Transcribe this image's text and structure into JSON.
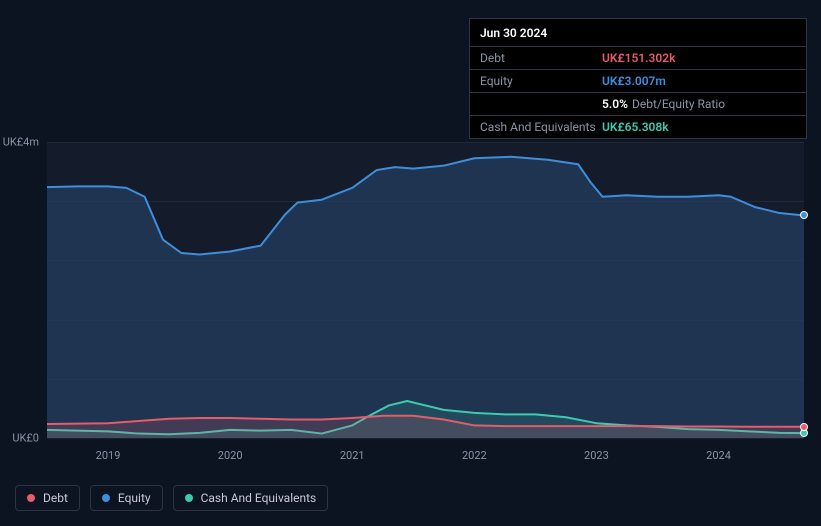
{
  "info_panel": {
    "title": "Jun 30 2024",
    "rows": [
      {
        "label": "Debt",
        "value": "UK£151.302k",
        "value_color": "#e35d6a",
        "extra": ""
      },
      {
        "label": "Equity",
        "value": "UK£3.007m",
        "value_color": "#3f8edc",
        "extra": ""
      },
      {
        "label": "",
        "value": "5.0%",
        "value_color": "#ffffff",
        "extra": "Debt/Equity Ratio"
      },
      {
        "label": "Cash And Equivalents",
        "value": "UK£65.308k",
        "value_color": "#3fcab0",
        "extra": ""
      }
    ]
  },
  "chart": {
    "background_color": "#0d1421",
    "plot_background": "#141c2c",
    "grid_color": "rgba(120,135,160,0.12)",
    "y_axis": {
      "max_value": 4000000,
      "min_value": 0,
      "labels": [
        {
          "text": "UK£4m",
          "value": 4000000
        },
        {
          "text": "UK£0",
          "value": 0
        }
      ]
    },
    "x_axis": {
      "min": 2018.5,
      "max": 2024.7,
      "ticks": [
        {
          "label": "2019",
          "value": 2019
        },
        {
          "label": "2020",
          "value": 2020
        },
        {
          "label": "2021",
          "value": 2021
        },
        {
          "label": "2022",
          "value": 2022
        },
        {
          "label": "2023",
          "value": 2023
        },
        {
          "label": "2024",
          "value": 2024
        }
      ]
    },
    "grid_h_count": 5,
    "series": [
      {
        "name": "Equity",
        "color": "#3f8edc",
        "fill": "rgba(36,68,106,0.60)",
        "line_width": 2,
        "points": [
          [
            2018.5,
            3390000
          ],
          [
            2018.75,
            3400000
          ],
          [
            2019.0,
            3400000
          ],
          [
            2019.15,
            3380000
          ],
          [
            2019.3,
            3260000
          ],
          [
            2019.45,
            2680000
          ],
          [
            2019.6,
            2500000
          ],
          [
            2019.75,
            2480000
          ],
          [
            2020.0,
            2520000
          ],
          [
            2020.25,
            2600000
          ],
          [
            2020.45,
            3020000
          ],
          [
            2020.55,
            3180000
          ],
          [
            2020.75,
            3220000
          ],
          [
            2021.0,
            3380000
          ],
          [
            2021.2,
            3620000
          ],
          [
            2021.35,
            3660000
          ],
          [
            2021.5,
            3640000
          ],
          [
            2021.75,
            3680000
          ],
          [
            2022.0,
            3780000
          ],
          [
            2022.3,
            3800000
          ],
          [
            2022.6,
            3760000
          ],
          [
            2022.85,
            3700000
          ],
          [
            2022.95,
            3460000
          ],
          [
            2023.05,
            3260000
          ],
          [
            2023.25,
            3280000
          ],
          [
            2023.5,
            3260000
          ],
          [
            2023.75,
            3260000
          ],
          [
            2024.0,
            3280000
          ],
          [
            2024.1,
            3260000
          ],
          [
            2024.3,
            3120000
          ],
          [
            2024.5,
            3040000
          ],
          [
            2024.7,
            3007000
          ]
        ],
        "end_marker": true
      },
      {
        "name": "Cash And Equivalents",
        "color": "#3fcab0",
        "fill": "rgba(63,202,176,0.14)",
        "line_width": 2,
        "points": [
          [
            2018.5,
            110000
          ],
          [
            2018.75,
            100000
          ],
          [
            2019.0,
            90000
          ],
          [
            2019.25,
            60000
          ],
          [
            2019.5,
            50000
          ],
          [
            2019.75,
            70000
          ],
          [
            2020.0,
            110000
          ],
          [
            2020.25,
            100000
          ],
          [
            2020.5,
            110000
          ],
          [
            2020.75,
            60000
          ],
          [
            2021.0,
            170000
          ],
          [
            2021.15,
            310000
          ],
          [
            2021.3,
            440000
          ],
          [
            2021.45,
            500000
          ],
          [
            2021.6,
            440000
          ],
          [
            2021.75,
            380000
          ],
          [
            2022.0,
            340000
          ],
          [
            2022.25,
            320000
          ],
          [
            2022.5,
            320000
          ],
          [
            2022.75,
            280000
          ],
          [
            2023.0,
            200000
          ],
          [
            2023.25,
            170000
          ],
          [
            2023.5,
            150000
          ],
          [
            2023.75,
            120000
          ],
          [
            2024.0,
            110000
          ],
          [
            2024.25,
            90000
          ],
          [
            2024.5,
            70000
          ],
          [
            2024.7,
            65308
          ]
        ],
        "end_marker": true
      },
      {
        "name": "Debt",
        "color": "#e35d6a",
        "fill": "rgba(227,93,106,0.18)",
        "line_width": 2,
        "points": [
          [
            2018.5,
            190000
          ],
          [
            2018.75,
            195000
          ],
          [
            2019.0,
            200000
          ],
          [
            2019.25,
            230000
          ],
          [
            2019.5,
            260000
          ],
          [
            2019.75,
            270000
          ],
          [
            2020.0,
            270000
          ],
          [
            2020.25,
            260000
          ],
          [
            2020.5,
            250000
          ],
          [
            2020.75,
            250000
          ],
          [
            2021.0,
            270000
          ],
          [
            2021.25,
            300000
          ],
          [
            2021.5,
            300000
          ],
          [
            2021.75,
            250000
          ],
          [
            2022.0,
            170000
          ],
          [
            2022.25,
            160000
          ],
          [
            2022.5,
            160000
          ],
          [
            2022.75,
            160000
          ],
          [
            2023.0,
            160000
          ],
          [
            2023.25,
            160000
          ],
          [
            2023.5,
            160000
          ],
          [
            2023.75,
            155000
          ],
          [
            2024.0,
            155000
          ],
          [
            2024.25,
            152000
          ],
          [
            2024.5,
            151302
          ],
          [
            2024.7,
            151302
          ]
        ],
        "end_marker": true
      }
    ]
  },
  "legend": {
    "items": [
      {
        "label": "Debt",
        "color": "#e35d6a"
      },
      {
        "label": "Equity",
        "color": "#3f8edc"
      },
      {
        "label": "Cash And Equivalents",
        "color": "#3fcab0"
      }
    ]
  }
}
